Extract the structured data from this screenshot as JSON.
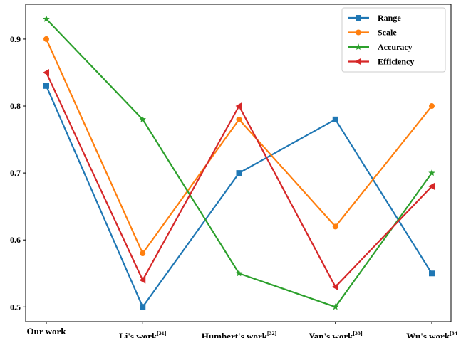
{
  "chart_data": {
    "type": "line",
    "categories": [
      {
        "label": "Our work",
        "ref": ""
      },
      {
        "label": "Li's work",
        "ref": "[31]"
      },
      {
        "label": "Humbert's work",
        "ref": "[32]"
      },
      {
        "label": "Yan's work",
        "ref": "[33]"
      },
      {
        "label": "Wu's work",
        "ref": "[34"
      }
    ],
    "series": [
      {
        "name": "Range",
        "color": "#1f77b4",
        "marker": "square",
        "values": [
          0.83,
          0.5,
          0.7,
          0.78,
          0.55
        ]
      },
      {
        "name": "Scale",
        "color": "#ff7f0e",
        "marker": "circle",
        "values": [
          0.9,
          0.58,
          0.78,
          0.62,
          0.8
        ]
      },
      {
        "name": "Accuracy",
        "color": "#2ca02c",
        "marker": "star",
        "values": [
          0.93,
          0.78,
          0.55,
          0.5,
          0.7
        ]
      },
      {
        "name": "Efficiency",
        "color": "#d62728",
        "marker": "triangle-left",
        "values": [
          0.85,
          0.54,
          0.8,
          0.53,
          0.68
        ]
      }
    ],
    "yticks": [
      "0.5",
      "0.6",
      "0.7",
      "0.8",
      "0.9"
    ],
    "ylim": [
      0.478,
      0.952
    ],
    "grid": false,
    "legend_position": "top-right",
    "title": "",
    "xlabel": "",
    "ylabel": ""
  }
}
